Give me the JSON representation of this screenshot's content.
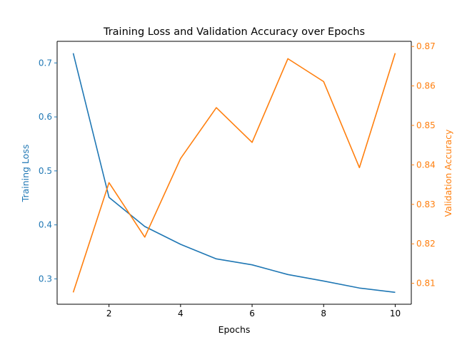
{
  "chart_data": {
    "type": "line",
    "title": "Training Loss and Validation Accuracy over Epochs",
    "xlabel": "Epochs",
    "xlim": [
      0.55,
      10.45
    ],
    "xticks": [
      2,
      4,
      6,
      8,
      10
    ],
    "grid": false,
    "x": [
      1,
      2,
      3,
      4,
      5,
      6,
      7,
      8,
      9,
      10
    ],
    "series": [
      {
        "name": "Training Loss",
        "axis": "left",
        "color": "#1f77b4",
        "values": [
          0.718,
          0.451,
          0.397,
          0.364,
          0.337,
          0.326,
          0.308,
          0.296,
          0.283,
          0.275
        ]
      },
      {
        "name": "Validation Accuracy",
        "axis": "right",
        "color": "#ff7f0e",
        "values": [
          0.8077,
          0.8355,
          0.8217,
          0.8416,
          0.8545,
          0.8457,
          0.8669,
          0.8611,
          0.8393,
          0.8683
        ]
      }
    ],
    "left_axis": {
      "label": "Training Loss",
      "color": "#1f77b4",
      "ylim": [
        0.253,
        0.74
      ],
      "ticks": [
        0.3,
        0.4,
        0.5,
        0.6,
        0.7
      ],
      "tick_labels": [
        "0.3",
        "0.4",
        "0.5",
        "0.6",
        "0.7"
      ]
    },
    "right_axis": {
      "label": "Validation Accuracy",
      "color": "#ff7f0e",
      "ylim": [
        0.8047,
        0.8713
      ],
      "ticks": [
        0.81,
        0.82,
        0.83,
        0.84,
        0.85,
        0.86,
        0.87
      ],
      "tick_labels": [
        "0.81",
        "0.82",
        "0.83",
        "0.84",
        "0.85",
        "0.86",
        "0.87"
      ]
    }
  }
}
